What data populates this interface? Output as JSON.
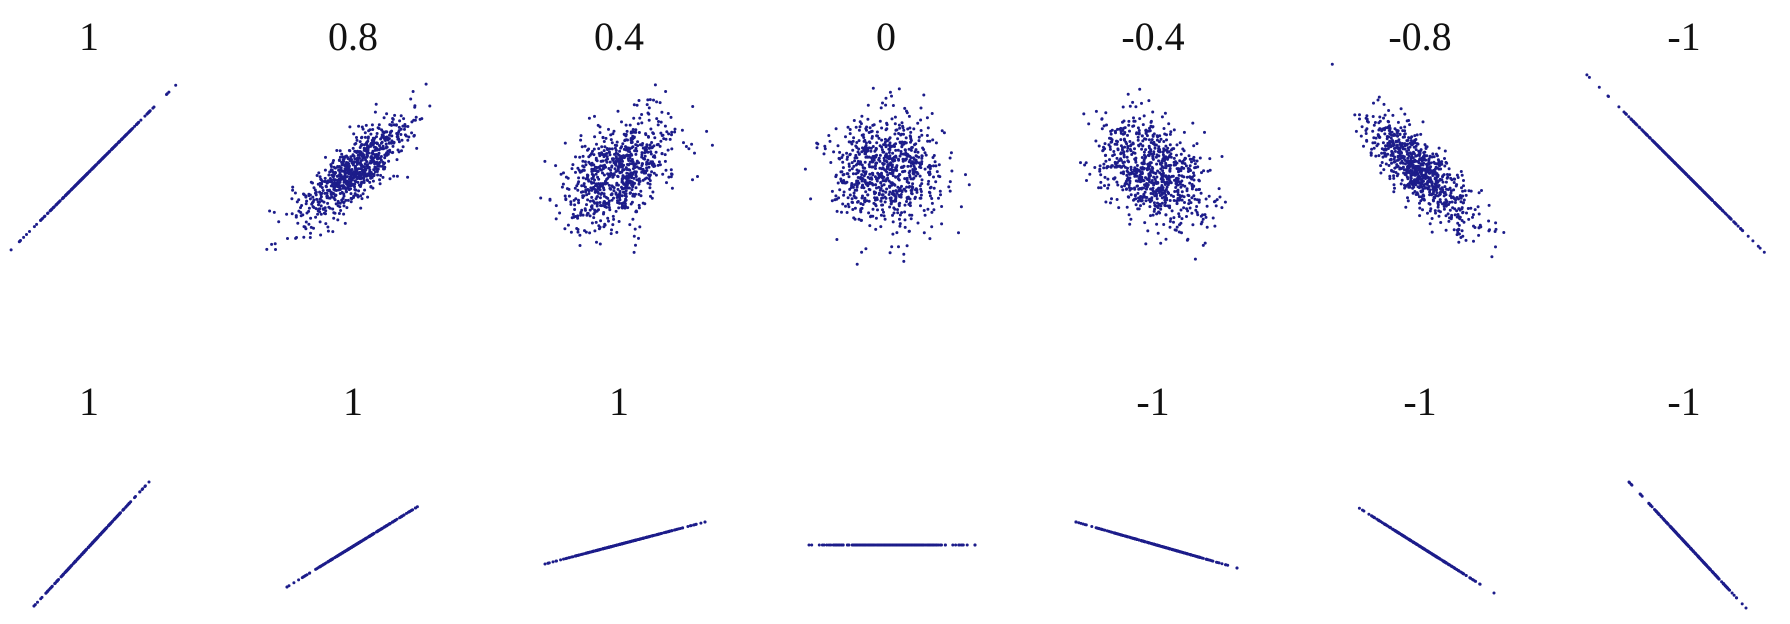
{
  "top_row": {
    "labels": [
      "1",
      "0.8",
      "0.4",
      "0",
      "-0.4",
      "-0.8",
      "-1"
    ]
  },
  "bottom_row": {
    "labels": [
      "1",
      "1",
      "1",
      "-1",
      "-1",
      "-1"
    ]
  }
}
